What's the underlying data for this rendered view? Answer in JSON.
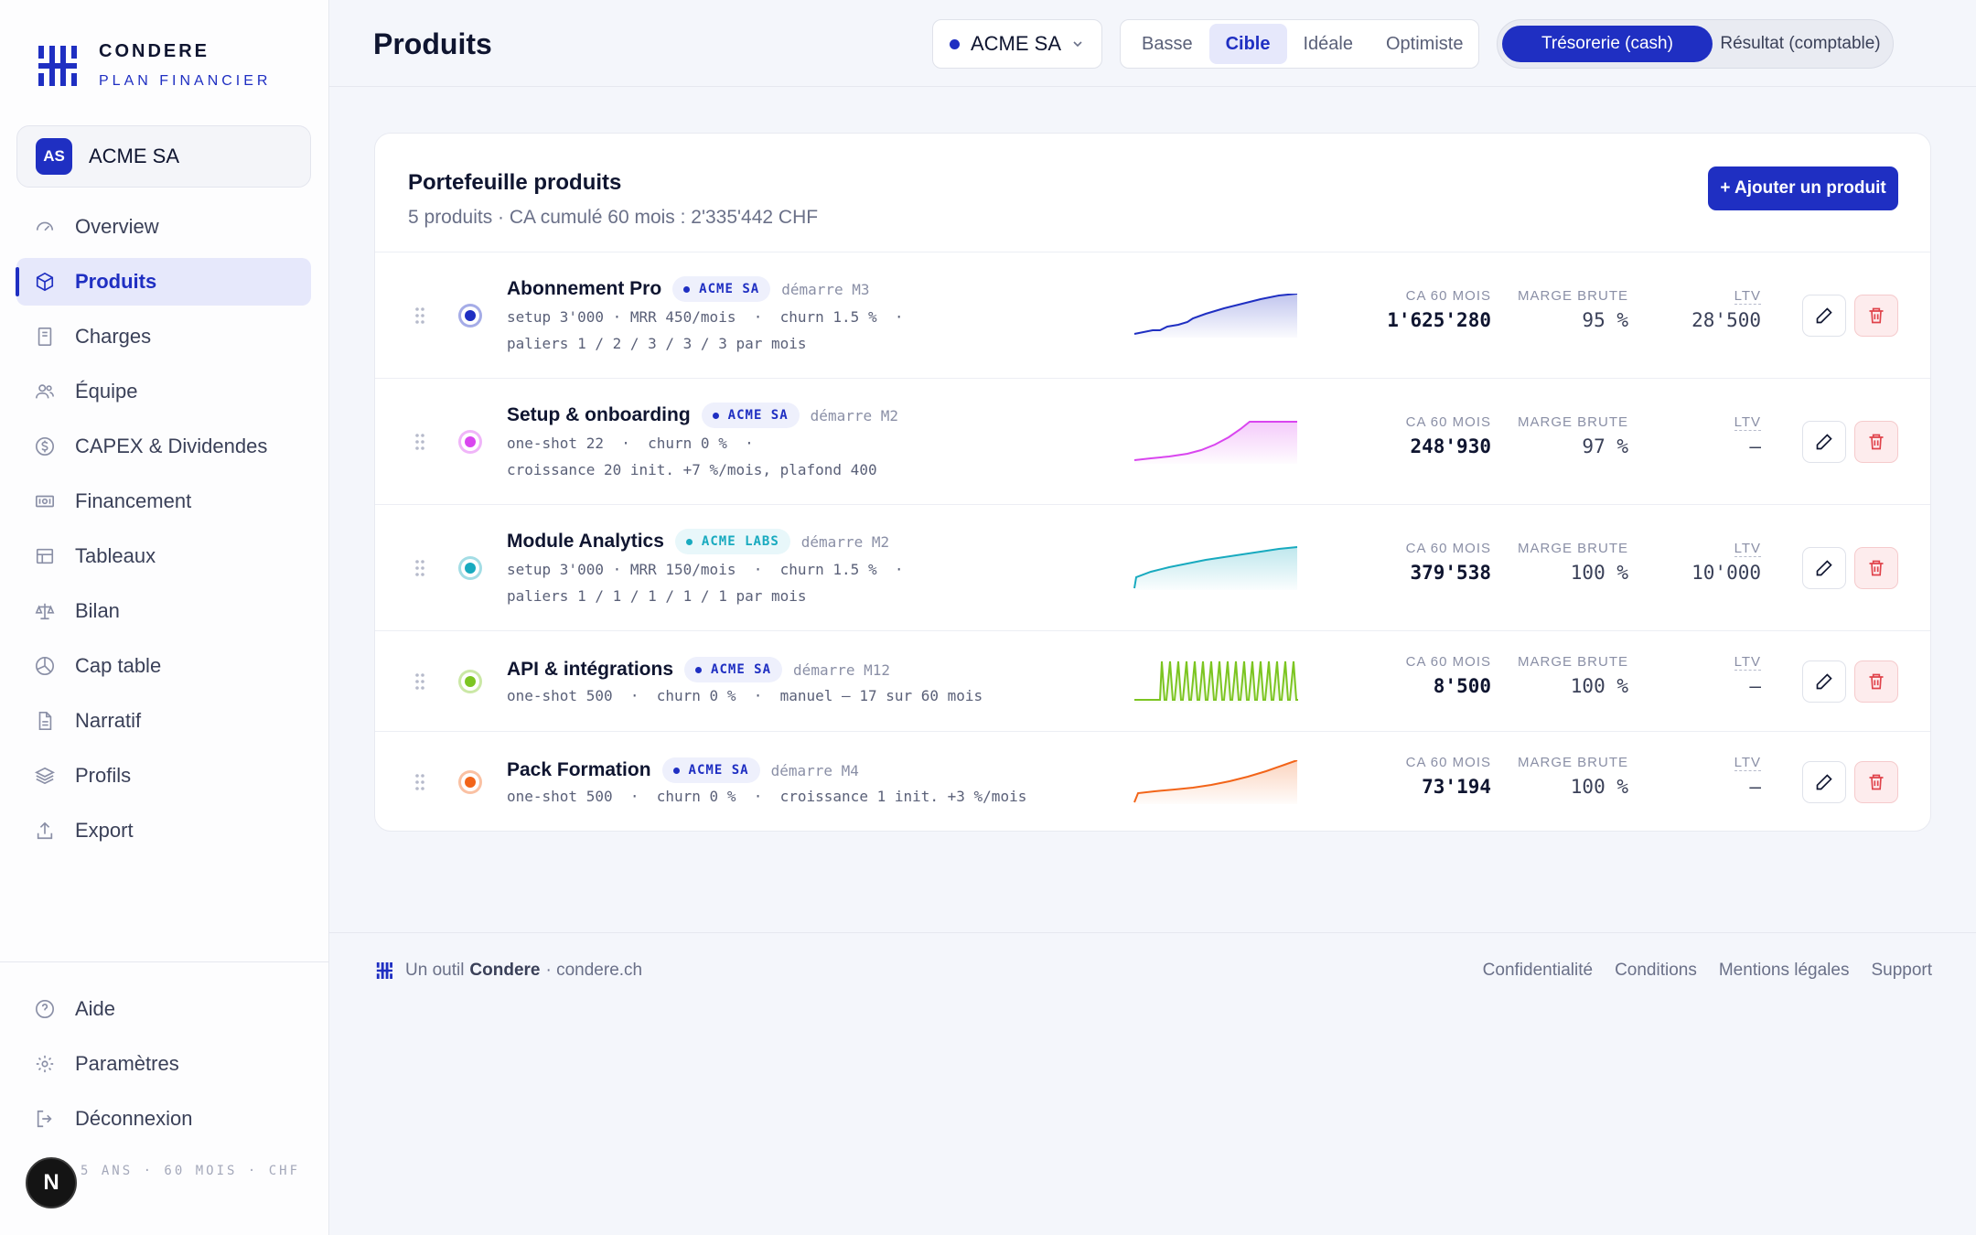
{
  "brand": {
    "name": "CONDERE",
    "subtitle": "PLAN FINANCIER"
  },
  "entity": {
    "initials": "AS",
    "name": "ACME SA"
  },
  "nav": [
    {
      "label": "Overview",
      "icon": "gauge-icon"
    },
    {
      "label": "Produits",
      "icon": "cube-icon",
      "active": true
    },
    {
      "label": "Charges",
      "icon": "receipt-icon"
    },
    {
      "label": "Équipe",
      "icon": "users-icon"
    },
    {
      "label": "CAPEX & Dividendes",
      "icon": "dollar-circle-icon"
    },
    {
      "label": "Financement",
      "icon": "banknote-icon"
    },
    {
      "label": "Tableaux",
      "icon": "table-icon"
    },
    {
      "label": "Bilan",
      "icon": "scale-icon"
    },
    {
      "label": "Cap table",
      "icon": "pie-icon"
    },
    {
      "label": "Narratif",
      "icon": "document-icon"
    },
    {
      "label": "Profils",
      "icon": "layers-icon"
    },
    {
      "label": "Export",
      "icon": "upload-icon"
    }
  ],
  "footer_nav": [
    {
      "label": "Aide",
      "icon": "help-icon"
    },
    {
      "label": "Paramètres",
      "icon": "settings-icon"
    },
    {
      "label": "Déconnexion",
      "icon": "logout-icon"
    }
  ],
  "side_meta": "5 ANS · 60 MOIS · CHF",
  "badge": "N",
  "header": {
    "title": "Produits",
    "company": "ACME SA",
    "scenarios": [
      "Basse",
      "Cible",
      "Idéale",
      "Optimiste"
    ],
    "active_scenario": "Cible",
    "modes": [
      "Trésorerie (cash)",
      "Résultat (comptable)"
    ],
    "active_mode": "Trésorerie (cash)"
  },
  "portfolio": {
    "title": "Portefeuille produits",
    "summary": "5 produits · CA cumulé 60 mois : 2'335'442 CHF",
    "add_label": "+ Ajouter un produit",
    "metric_labels": {
      "ca": "CA 60 MOIS",
      "marge": "MARGE BRUTE",
      "ltv": "LTV"
    },
    "products": [
      {
        "name": "Abonnement Pro",
        "tag": "ACME SA",
        "start": "démarre M3",
        "detail_line1": "setup 3'000 · MRR 450/mois  ·  churn 1.5 %  ·",
        "detail_line2": "paliers 1 / 2 / 3 / 3 / 3 par mois",
        "ca": "1'625'280",
        "marge": "95 %",
        "ltv": "28'500",
        "color": "#1f2fc2"
      },
      {
        "name": "Setup & onboarding",
        "tag": "ACME SA",
        "start": "démarre M2",
        "detail_line1": "one-shot 22  ·  churn 0 %  ·",
        "detail_line2": "croissance 20 init. +7 %/mois, plafond 400",
        "ca": "248'930",
        "marge": "97 %",
        "ltv": "—",
        "color": "#d946ef"
      },
      {
        "name": "Module Analytics",
        "tag": "ACME LABS",
        "start": "démarre M2",
        "detail_line1": "setup 3'000 · MRR 150/mois  ·  churn 1.5 %  ·",
        "detail_line2": "paliers 1 / 1 / 1 / 1 / 1 par mois",
        "ca": "379'538",
        "marge": "100 %",
        "ltv": "10'000",
        "color": "#18aabf"
      },
      {
        "name": "API & intégrations",
        "tag": "ACME SA",
        "start": "démarre M12",
        "detail_line1": "one-shot 500  ·  churn 0 %  ·  manuel — 17 sur 60 mois",
        "ca": "8'500",
        "marge": "100 %",
        "ltv": "—",
        "color": "#7cc521"
      },
      {
        "name": "Pack Formation",
        "tag": "ACME SA",
        "start": "démarre M4",
        "detail_line1": "one-shot 500  ·  churn 0 %  ·  croissance 1 init. +3 %/mois",
        "ca": "73'194",
        "marge": "100 %",
        "ltv": "—",
        "color": "#f26419"
      }
    ]
  },
  "footer": {
    "prefix": "Un outil",
    "brand": "Condere",
    "suffix": "· condere.ch",
    "links": [
      "Confidentialité",
      "Conditions",
      "Mentions légales",
      "Support"
    ]
  }
}
